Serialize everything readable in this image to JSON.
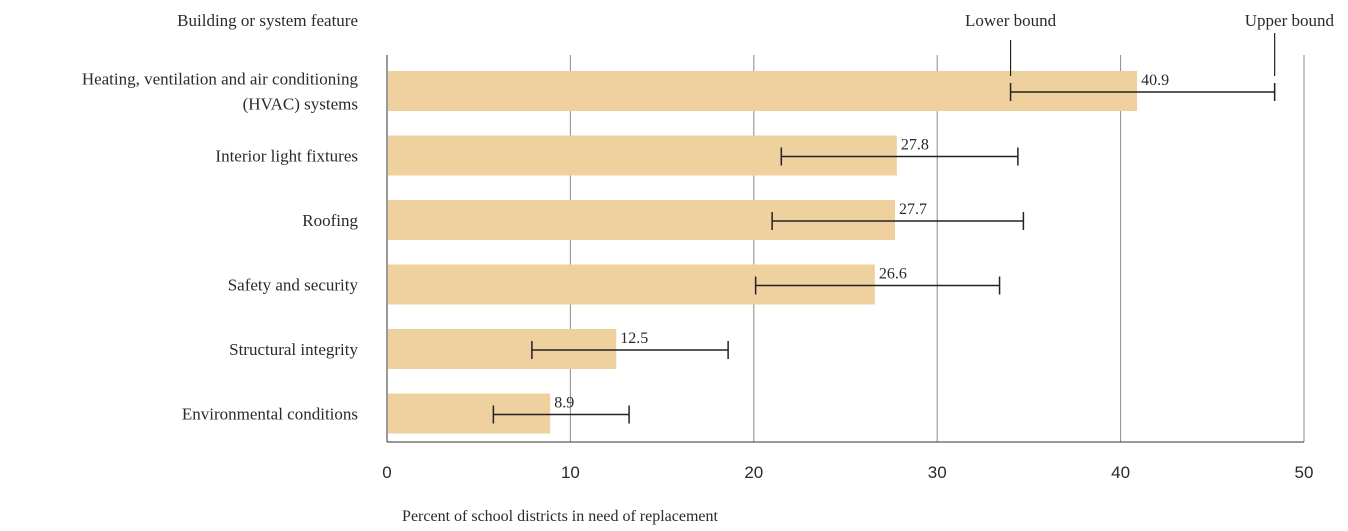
{
  "chart_data": {
    "type": "bar",
    "orientation": "horizontal",
    "category_header": "Building or system feature",
    "xlabel": "Percent of school districts in need of replacement",
    "xlim": [
      0,
      50
    ],
    "xticks": [
      0,
      10,
      20,
      30,
      40,
      50
    ],
    "legend": {
      "lower_bound_label": "Lower bound",
      "upper_bound_label": "Upper bound"
    },
    "categories": [
      [
        "Heating, ventilation and air conditioning",
        "(HVAC) systems"
      ],
      [
        "Interior light fixtures"
      ],
      [
        "Roofing"
      ],
      [
        "Safety and security"
      ],
      [
        "Structural integrity"
      ],
      [
        "Environmental conditions"
      ]
    ],
    "values": [
      40.9,
      27.8,
      27.7,
      26.6,
      12.5,
      8.9
    ],
    "value_labels": [
      "40.9",
      "27.8",
      "27.7",
      "26.6",
      "12.5",
      "8.9"
    ],
    "lower_bounds": [
      34.0,
      21.5,
      21.0,
      20.1,
      7.9,
      5.8
    ],
    "upper_bounds": [
      48.4,
      34.4,
      34.7,
      33.4,
      18.6,
      13.2
    ],
    "bar_color": "#efd09f",
    "grid": true
  }
}
